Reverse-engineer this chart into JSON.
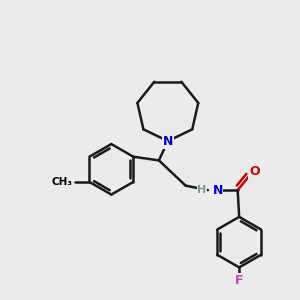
{
  "background_color": "#ebebeb",
  "atom_colors": {
    "N": "#0000cc",
    "O": "#cc0000",
    "F": "#cc44cc",
    "C": "#000000",
    "H": "#7a9a9a"
  },
  "bond_color": "#1a1a1a",
  "bond_width": 1.8,
  "figsize": [
    3.0,
    3.0
  ],
  "dpi": 100
}
